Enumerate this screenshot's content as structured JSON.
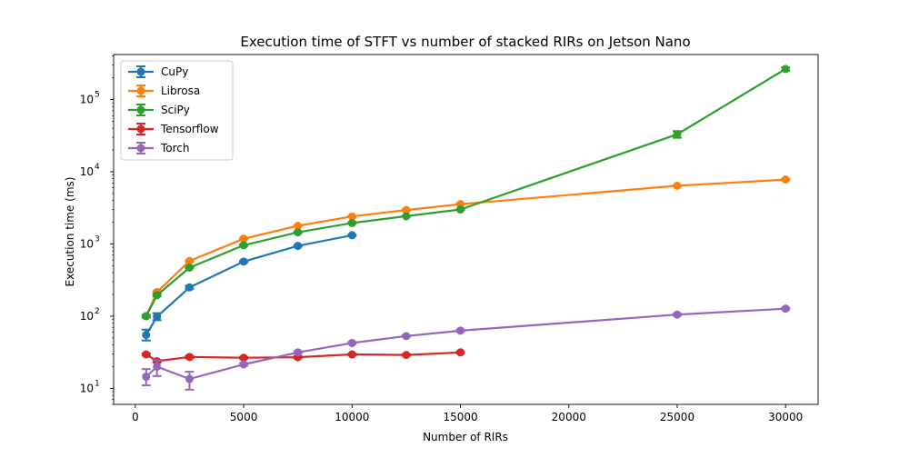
{
  "chart_data": {
    "type": "line",
    "title": "Execution time of STFT vs number of stacked RIRs on Jetson Nano",
    "xlabel": "Number of RIRs",
    "ylabel": "Execution time (ms)",
    "xscale": "linear",
    "yscale": "log",
    "xlim": [
      -1000,
      31500
    ],
    "ylim": [
      6,
      420000
    ],
    "xticks": [
      0,
      5000,
      10000,
      15000,
      20000,
      25000,
      30000
    ],
    "xtick_labels": [
      "0",
      "5000",
      "10000",
      "15000",
      "20000",
      "25000",
      "30000"
    ],
    "yticks": [
      10,
      100,
      1000,
      10000,
      100000
    ],
    "grid": false,
    "legend_position": "upper-left",
    "series": [
      {
        "name": "CuPy",
        "color": "#1f77b4",
        "x": [
          500,
          1000,
          2500,
          5000,
          7500,
          10000
        ],
        "y": [
          55,
          98,
          250,
          570,
          940,
          1320
        ],
        "err_low": [
          46,
          88,
          240,
          555,
          920,
          1300
        ],
        "err_high": [
          65,
          110,
          262,
          585,
          960,
          1340
        ]
      },
      {
        "name": "Librosa",
        "color": "#ff7f0e",
        "x": [
          500,
          1000,
          2500,
          5000,
          7500,
          10000,
          12500,
          15000,
          25000,
          30000
        ],
        "y": [
          100,
          215,
          580,
          1180,
          1780,
          2400,
          2950,
          3550,
          6400,
          7800
        ],
        "err_low": [
          96,
          208,
          570,
          1160,
          1750,
          2370,
          2920,
          3500,
          6300,
          7650
        ],
        "err_high": [
          104,
          222,
          590,
          1200,
          1810,
          2430,
          2980,
          3600,
          6500,
          7950
        ]
      },
      {
        "name": "SciPy",
        "color": "#2ca02c",
        "x": [
          500,
          1000,
          2500,
          5000,
          7500,
          10000,
          12500,
          15000,
          25000,
          30000
        ],
        "y": [
          100,
          195,
          470,
          960,
          1450,
          1950,
          2420,
          3000,
          33000,
          265000
        ],
        "err_low": [
          96,
          188,
          460,
          940,
          1420,
          1910,
          2380,
          2950,
          29500,
          250000
        ],
        "err_high": [
          104,
          202,
          480,
          980,
          1480,
          1990,
          2460,
          3050,
          36500,
          280000
        ]
      },
      {
        "name": "Tensorflow",
        "color": "#d62728",
        "x": [
          500,
          1000,
          2500,
          5000,
          7500,
          10000,
          12500,
          15000
        ],
        "y": [
          29.5,
          23.8,
          27.2,
          26.5,
          27.0,
          29.5,
          29.0,
          31.5
        ],
        "err_low": [
          28.5,
          22.8,
          26.2,
          25.7,
          26.2,
          28.7,
          28.2,
          30.6
        ],
        "err_high": [
          30.5,
          24.8,
          28.2,
          27.3,
          27.8,
          30.3,
          29.8,
          32.4
        ]
      },
      {
        "name": "Torch",
        "color": "#9467bd",
        "x": [
          500,
          1000,
          2500,
          5000,
          7500,
          10000,
          12500,
          15000,
          25000,
          30000
        ],
        "y": [
          14.5,
          20.0,
          13.5,
          21.5,
          31.5,
          42.5,
          53.0,
          63.0,
          105,
          127
        ],
        "err_low": [
          11.0,
          14.8,
          9.6,
          20.6,
          30.3,
          41.2,
          51.8,
          61.5,
          102,
          124
        ],
        "err_high": [
          18.5,
          24.5,
          17.0,
          22.4,
          32.7,
          43.8,
          54.2,
          64.5,
          108,
          130
        ]
      }
    ]
  }
}
